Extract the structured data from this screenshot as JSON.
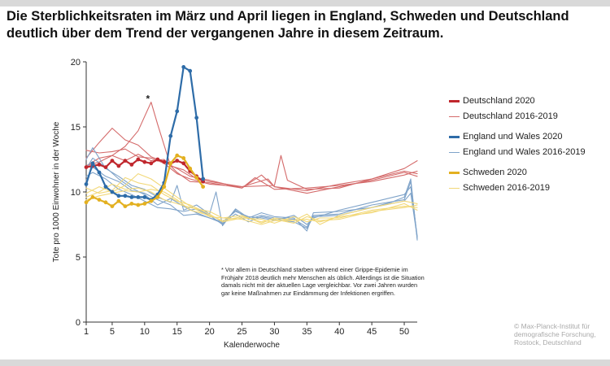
{
  "title_lines": [
    "Die Sterblichkeitsraten im März und April liegen in England, Schweden und Deutschland",
    "deutlich über dem Trend der vergangenen Jahre in diesem Zeitraum."
  ],
  "annotation_note": "* Vor allem in Deutschland starben während einer Grippe-Epidemie im Frühjahr 2018 deutlich mehr Menschen als üblich. Allerdings ist die Situation damals nicht mit der aktuellen Lage vergleichbar. Vor zwei Jahren wurden gar keine Maßnahmen zur Eindämmung der Infektionen ergriffen.",
  "credit_lines": [
    "© Max-Planck-Institut für",
    "demografische Forschung,",
    "Rostock, Deutschland"
  ],
  "colors": {
    "de2020": "#c0272d",
    "de_prev": "#d46a6a",
    "ew2020": "#2e6ca8",
    "ew_prev": "#7fa3c9",
    "se2020": "#e3b020",
    "se_prev": "#f2d878",
    "axis": "#333333"
  },
  "chart_data": {
    "type": "line",
    "title": "Die Sterblichkeitsraten im März und April liegen in England, Schweden und Deutschland deutlich über dem Trend der vergangenen Jahre in diesem Zeitraum.",
    "xlabel": "Kalenderwoche",
    "ylabel": "Tote pro 1000 Einwohner in der Woche",
    "xlim": [
      1,
      52
    ],
    "ylim": [
      0,
      20
    ],
    "xticks": [
      1,
      5,
      10,
      15,
      20,
      25,
      30,
      35,
      40,
      45,
      50
    ],
    "yticks": [
      0,
      5,
      10,
      15,
      20
    ],
    "annotation": {
      "text": "*",
      "x": 10.5,
      "y": 16.9
    },
    "legend_position": "right",
    "series": [
      {
        "name": "Deutschland 2020",
        "key": "de2020",
        "style": "bold",
        "markers": true,
        "x": [
          1,
          2,
          3,
          4,
          5,
          6,
          7,
          8,
          9,
          10,
          11,
          12,
          13,
          14,
          15,
          16,
          17,
          18,
          19
        ],
        "y": [
          11.9,
          12.0,
          12.1,
          11.9,
          12.4,
          12.0,
          12.4,
          12.1,
          12.5,
          12.3,
          12.2,
          12.5,
          12.3,
          12.2,
          12.4,
          12.2,
          11.6,
          11.2,
          10.8
        ]
      },
      {
        "name": "Deutschland 2016-2019",
        "key": "de_prev",
        "style": "thin",
        "markers": false,
        "group": [
          {
            "x": [
              1,
              3,
              5,
              7,
              9,
              10,
              11,
              12,
              14,
              16,
              18,
              20,
              25,
              30,
              31,
              32,
              35,
              40,
              45,
              50,
              52
            ],
            "y": [
              12.0,
              12.6,
              12.8,
              13.5,
              14.7,
              15.8,
              16.9,
              15.2,
              12.0,
              11.7,
              11.0,
              10.8,
              10.4,
              10.5,
              12.8,
              10.9,
              10.2,
              10.3,
              11.0,
              11.8,
              12.4
            ]
          },
          {
            "x": [
              1,
              3,
              5,
              7,
              9,
              11,
              13,
              15,
              17,
              20,
              25,
              28,
              30,
              35,
              40,
              45,
              50,
              52
            ],
            "y": [
              12.6,
              13.8,
              14.9,
              14.0,
              13.6,
              12.7,
              12.3,
              11.8,
              11.2,
              10.9,
              10.3,
              11.3,
              10.4,
              9.9,
              10.4,
              10.9,
              11.5,
              11.2
            ]
          },
          {
            "x": [
              1,
              3,
              5,
              7,
              9,
              11,
              13,
              15,
              17,
              20,
              25,
              27,
              30,
              35,
              40,
              45,
              50,
              52
            ],
            "y": [
              12.0,
              12.3,
              12.8,
              12.4,
              12.9,
              12.4,
              12.5,
              11.5,
              10.8,
              10.7,
              10.3,
              11.1,
              10.2,
              10.3,
              10.5,
              10.8,
              11.3,
              11.6
            ]
          },
          {
            "x": [
              1,
              3,
              5,
              7,
              9,
              11,
              13,
              15,
              17,
              20,
              25,
              29,
              30,
              35,
              40,
              45,
              50,
              52
            ],
            "y": [
              13.2,
              13.0,
              13.1,
              13.3,
              12.7,
              12.6,
              12.2,
              11.4,
              11.0,
              10.6,
              10.4,
              11.0,
              10.4,
              10.1,
              10.6,
              11.0,
              11.6,
              11.4
            ]
          }
        ]
      },
      {
        "name": "England und Wales 2020",
        "key": "ew2020",
        "style": "bold",
        "markers": true,
        "x": [
          1,
          2,
          3,
          4,
          5,
          6,
          7,
          8,
          9,
          10,
          11,
          12,
          13,
          14,
          15,
          16,
          17,
          18,
          19
        ],
        "y": [
          10.6,
          12.2,
          11.5,
          10.4,
          10.0,
          9.7,
          9.7,
          9.6,
          9.6,
          9.6,
          9.4,
          9.8,
          10.7,
          14.3,
          16.2,
          19.6,
          19.3,
          15.7,
          11.0
        ]
      },
      {
        "name": "England und Wales 2016-2019",
        "key": "ew_prev",
        "style": "thin",
        "markers": false,
        "group": [
          {
            "x": [
              1,
              2,
              4,
              6,
              8,
              10,
              12,
              14,
              15,
              16,
              18,
              20,
              21,
              22,
              24,
              26,
              28,
              30,
              33,
              35,
              36,
              40,
              45,
              48,
              50,
              51,
              52
            ],
            "y": [
              12.5,
              13.4,
              11.8,
              11.2,
              10.5,
              10.2,
              9.6,
              9.2,
              10.5,
              8.6,
              9.0,
              8.3,
              10.0,
              7.4,
              8.7,
              8.0,
              8.4,
              8.1,
              8.0,
              7.0,
              8.4,
              8.5,
              8.8,
              9.2,
              9.6,
              11.0,
              6.3
            ]
          },
          {
            "x": [
              1,
              2,
              4,
              6,
              8,
              10,
              12,
              14,
              16,
              18,
              20,
              22,
              24,
              26,
              28,
              30,
              33,
              35,
              36,
              40,
              45,
              50,
              51,
              52
            ],
            "y": [
              11.2,
              11.5,
              11.0,
              10.2,
              9.8,
              9.3,
              8.8,
              8.7,
              8.5,
              8.7,
              8.2,
              7.5,
              8.6,
              7.9,
              8.2,
              8.0,
              7.9,
              7.3,
              8.2,
              8.3,
              9.0,
              9.4,
              10.8,
              6.4
            ]
          },
          {
            "x": [
              1,
              2,
              4,
              6,
              8,
              10,
              12,
              14,
              16,
              18,
              20,
              22,
              24,
              26,
              28,
              30,
              33,
              35,
              36,
              40,
              45,
              50,
              51,
              52
            ],
            "y": [
              11.8,
              12.6,
              11.9,
              11.0,
              10.3,
              9.8,
              9.0,
              9.5,
              8.9,
              8.4,
              8.0,
              7.7,
              8.5,
              8.1,
              8.0,
              7.8,
              8.2,
              7.5,
              8.0,
              8.6,
              9.2,
              9.8,
              10.4,
              6.6
            ]
          },
          {
            "x": [
              1,
              2,
              4,
              6,
              8,
              10,
              12,
              14,
              16,
              18,
              20,
              22,
              24,
              26,
              28,
              30,
              33,
              35,
              36,
              40,
              45,
              50,
              51,
              52
            ],
            "y": [
              10.9,
              11.9,
              11.2,
              10.8,
              10.1,
              9.9,
              9.4,
              9.0,
              8.2,
              8.3,
              8.0,
              7.6,
              8.3,
              7.7,
              8.1,
              7.9,
              7.7,
              7.2,
              8.1,
              8.2,
              8.8,
              9.3,
              9.9,
              6.5
            ]
          }
        ]
      },
      {
        "name": "Schweden 2020",
        "key": "se2020",
        "style": "bold",
        "markers": true,
        "x": [
          1,
          2,
          3,
          4,
          5,
          6,
          7,
          8,
          9,
          10,
          11,
          12,
          13,
          14,
          15,
          16,
          17,
          18,
          19
        ],
        "y": [
          9.2,
          9.6,
          9.4,
          9.2,
          8.9,
          9.3,
          8.9,
          9.1,
          9.0,
          9.1,
          9.3,
          9.6,
          10.4,
          12.2,
          12.8,
          12.6,
          11.8,
          11.1,
          10.4
        ]
      },
      {
        "name": "Schweden 2016-2019",
        "key": "se_prev",
        "style": "thin",
        "markers": false,
        "group": [
          {
            "x": [
              1,
              3,
              5,
              7,
              9,
              11,
              13,
              15,
              17,
              20,
              22,
              25,
              28,
              30,
              33,
              35,
              37,
              40,
              45,
              50,
              52
            ],
            "y": [
              9.6,
              10.0,
              10.6,
              10.2,
              10.3,
              10.0,
              9.4,
              9.1,
              8.8,
              8.5,
              8.0,
              8.2,
              7.6,
              8.0,
              7.8,
              8.3,
              7.5,
              8.2,
              8.8,
              9.3,
              9.1
            ]
          },
          {
            "x": [
              1,
              3,
              5,
              7,
              9,
              11,
              13,
              15,
              17,
              20,
              22,
              25,
              28,
              30,
              33,
              35,
              37,
              40,
              45,
              50,
              52
            ],
            "y": [
              10.3,
              9.9,
              10.1,
              11.1,
              10.7,
              10.5,
              9.8,
              9.3,
              9.0,
              8.3,
              7.7,
              8.0,
              7.9,
              7.6,
              8.1,
              7.7,
              8.0,
              8.0,
              8.6,
              8.9,
              8.8
            ]
          },
          {
            "x": [
              1,
              3,
              5,
              7,
              9,
              11,
              13,
              15,
              17,
              20,
              22,
              25,
              28,
              30,
              33,
              35,
              37,
              40,
              45,
              50,
              52
            ],
            "y": [
              9.9,
              10.4,
              10.0,
              10.5,
              11.4,
              11.0,
              10.3,
              9.6,
              8.9,
              8.1,
              8.0,
              7.9,
              7.5,
              7.8,
              7.8,
              7.9,
              7.7,
              8.1,
              8.4,
              9.1,
              8.6
            ]
          },
          {
            "x": [
              1,
              3,
              5,
              7,
              9,
              11,
              13,
              15,
              17,
              20,
              22,
              25,
              28,
              30,
              33,
              35,
              37,
              40,
              45,
              50,
              52
            ],
            "y": [
              9.4,
              9.7,
              9.9,
              10.1,
              10.0,
              10.2,
              10.0,
              9.4,
              8.6,
              8.2,
              7.8,
              8.1,
              7.7,
              7.9,
              7.6,
              8.1,
              7.8,
              7.9,
              8.5,
              8.8,
              9.0
            ]
          }
        ]
      }
    ]
  }
}
